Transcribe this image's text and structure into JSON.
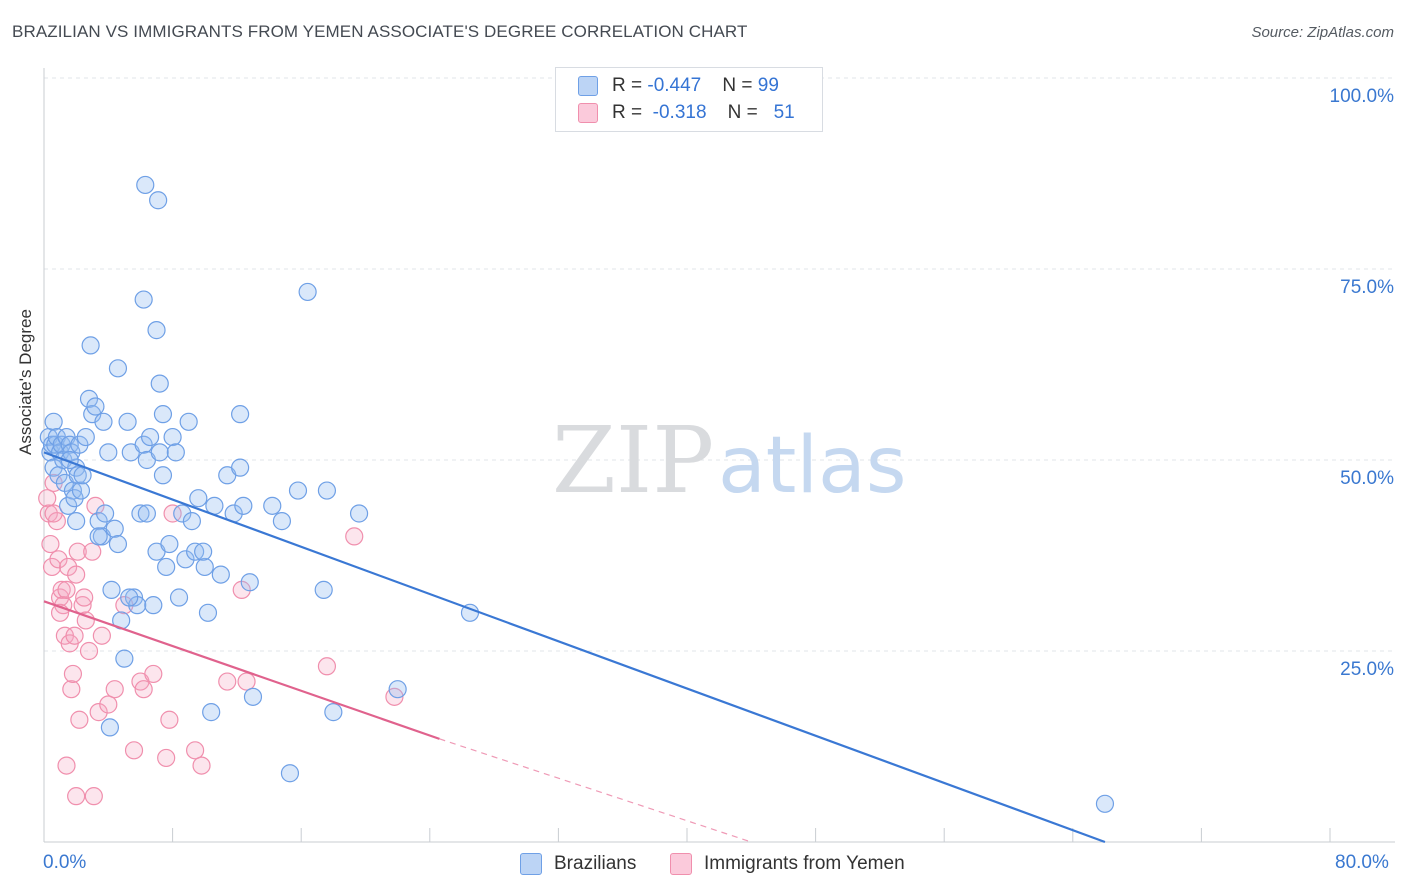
{
  "title": "BRAZILIAN VS IMMIGRANTS FROM YEMEN ASSOCIATE'S DEGREE CORRELATION CHART",
  "source": "Source: ZipAtlas.com",
  "watermark": {
    "zip": "ZIP",
    "atlas": "atlas"
  },
  "legend": {
    "rows": [
      {
        "r_label": "R = ",
        "r_value": "-0.447",
        "n_label": "N = ",
        "n_value": "99",
        "color": "#6fa0e6"
      },
      {
        "r_label": "R = ",
        "r_value": "-0.318",
        "n_label": "N = ",
        "n_value": "51",
        "color": "#f08fad"
      }
    ]
  },
  "bottom_legend": [
    {
      "label": "Brazilians",
      "color": "#6fa0e6"
    },
    {
      "label": "Immigrants from Yemen",
      "color": "#f08fad"
    }
  ],
  "colors": {
    "blue": "#3a78d4",
    "pink": "#e0628d",
    "grid": "#e2e4e8",
    "axis_text": "#3a78d0"
  },
  "chart_data": {
    "type": "scatter",
    "xlabel": "",
    "ylabel": "Associate's Degree",
    "xlim": [
      0,
      80
    ],
    "ylim": [
      0,
      100
    ],
    "x_tick_labels": [
      "0.0%",
      "80.0%"
    ],
    "y_tick_labels": [
      {
        "value": 100,
        "label": "100.0%"
      },
      {
        "value": 75,
        "label": "75.0%"
      },
      {
        "value": 50,
        "label": "50.0%"
      },
      {
        "value": 25,
        "label": "25.0%"
      }
    ],
    "series": [
      {
        "name": "Brazilians",
        "r": -0.447,
        "n": 99,
        "trend": {
          "x0": 0,
          "y0": 51,
          "x1": 66,
          "y1": 0
        },
        "points": [
          [
            0.3,
            53
          ],
          [
            0.4,
            51
          ],
          [
            0.5,
            52
          ],
          [
            0.6,
            49
          ],
          [
            0.6,
            55
          ],
          [
            0.7,
            52
          ],
          [
            0.8,
            53
          ],
          [
            0.9,
            48
          ],
          [
            1.0,
            51
          ],
          [
            1.1,
            52
          ],
          [
            1.2,
            50
          ],
          [
            1.3,
            47
          ],
          [
            1.4,
            53
          ],
          [
            1.5,
            44
          ],
          [
            1.6,
            52
          ],
          [
            1.7,
            51
          ],
          [
            1.8,
            46
          ],
          [
            1.9,
            45
          ],
          [
            2.0,
            49
          ],
          [
            2.1,
            48
          ],
          [
            2.2,
            52
          ],
          [
            2.3,
            46
          ],
          [
            2.4,
            48
          ],
          [
            2.6,
            53
          ],
          [
            2.8,
            58
          ],
          [
            3.0,
            56
          ],
          [
            3.2,
            57
          ],
          [
            3.4,
            42
          ],
          [
            3.6,
            40
          ],
          [
            3.8,
            43
          ],
          [
            4.0,
            51
          ],
          [
            4.2,
            33
          ],
          [
            4.4,
            41
          ],
          [
            4.6,
            39
          ],
          [
            4.8,
            29
          ],
          [
            5.0,
            24
          ],
          [
            5.2,
            55
          ],
          [
            5.4,
            51
          ],
          [
            5.6,
            32
          ],
          [
            5.8,
            31
          ],
          [
            6.0,
            43
          ],
          [
            6.2,
            52
          ],
          [
            6.4,
            50
          ],
          [
            6.6,
            53
          ],
          [
            6.8,
            31
          ],
          [
            7.0,
            38
          ],
          [
            7.2,
            51
          ],
          [
            7.4,
            48
          ],
          [
            7.6,
            36
          ],
          [
            7.8,
            39
          ],
          [
            8.0,
            53
          ],
          [
            8.2,
            51
          ],
          [
            8.4,
            32
          ],
          [
            8.6,
            43
          ],
          [
            8.8,
            37
          ],
          [
            9.0,
            55
          ],
          [
            9.2,
            42
          ],
          [
            9.4,
            38
          ],
          [
            9.6,
            45
          ],
          [
            10.0,
            36
          ],
          [
            10.2,
            30
          ],
          [
            10.4,
            17
          ],
          [
            10.6,
            44
          ],
          [
            11.0,
            35
          ],
          [
            11.4,
            48
          ],
          [
            11.8,
            43
          ],
          [
            12.2,
            49
          ],
          [
            12.4,
            44
          ],
          [
            12.8,
            34
          ],
          [
            13.0,
            19
          ],
          [
            14.2,
            44
          ],
          [
            14.8,
            42
          ],
          [
            15.3,
            9
          ],
          [
            15.8,
            46
          ],
          [
            16.4,
            72
          ],
          [
            17.4,
            33
          ],
          [
            17.6,
            46
          ],
          [
            18.0,
            17
          ],
          [
            19.6,
            43
          ],
          [
            22.0,
            20
          ],
          [
            26.5,
            30
          ],
          [
            66.0,
            5
          ],
          [
            6.3,
            86
          ],
          [
            7.1,
            84
          ],
          [
            6.2,
            71
          ],
          [
            7.0,
            67
          ],
          [
            2.9,
            65
          ],
          [
            4.6,
            62
          ],
          [
            7.2,
            60
          ],
          [
            7.4,
            56
          ],
          [
            3.7,
            55
          ],
          [
            12.2,
            56
          ],
          [
            6.4,
            43
          ],
          [
            1.6,
            50
          ],
          [
            2.0,
            42
          ],
          [
            3.4,
            40
          ],
          [
            9.9,
            38
          ],
          [
            5.3,
            32
          ],
          [
            4.1,
            15
          ]
        ]
      },
      {
        "name": "Immigrants from Yemen",
        "r": -0.318,
        "n": 51,
        "trend": {
          "x0": 0,
          "y0": 31.5,
          "x1": 24.6,
          "y1": 13.5
        },
        "trend_dashed": {
          "x0": 24.6,
          "y0": 13.5,
          "x1": 44,
          "y1": 0
        },
        "points": [
          [
            0.2,
            45
          ],
          [
            0.3,
            43
          ],
          [
            0.4,
            39
          ],
          [
            0.5,
            36
          ],
          [
            0.6,
            47
          ],
          [
            0.8,
            42
          ],
          [
            0.9,
            37
          ],
          [
            1.0,
            32
          ],
          [
            1.1,
            33
          ],
          [
            1.2,
            31
          ],
          [
            1.3,
            27
          ],
          [
            1.4,
            33
          ],
          [
            1.5,
            36
          ],
          [
            1.6,
            26
          ],
          [
            1.7,
            20
          ],
          [
            1.8,
            22
          ],
          [
            1.9,
            27
          ],
          [
            2.0,
            35
          ],
          [
            2.1,
            38
          ],
          [
            2.2,
            16
          ],
          [
            2.4,
            31
          ],
          [
            2.6,
            29
          ],
          [
            2.8,
            25
          ],
          [
            3.0,
            38
          ],
          [
            3.2,
            44
          ],
          [
            3.4,
            17
          ],
          [
            3.6,
            27
          ],
          [
            4.0,
            18
          ],
          [
            4.4,
            20
          ],
          [
            5.0,
            31
          ],
          [
            5.6,
            12
          ],
          [
            6.0,
            21
          ],
          [
            6.2,
            20
          ],
          [
            6.8,
            22
          ],
          [
            7.6,
            11
          ],
          [
            7.8,
            16
          ],
          [
            8.0,
            43
          ],
          [
            9.4,
            12
          ],
          [
            9.8,
            10
          ],
          [
            11.4,
            21
          ],
          [
            12.3,
            33
          ],
          [
            12.6,
            21
          ],
          [
            17.6,
            23
          ],
          [
            19.3,
            40
          ],
          [
            21.8,
            19
          ],
          [
            2.0,
            6
          ],
          [
            3.1,
            6
          ],
          [
            1.4,
            10
          ],
          [
            0.6,
            43
          ],
          [
            2.5,
            32
          ],
          [
            1.0,
            30
          ]
        ]
      }
    ]
  }
}
